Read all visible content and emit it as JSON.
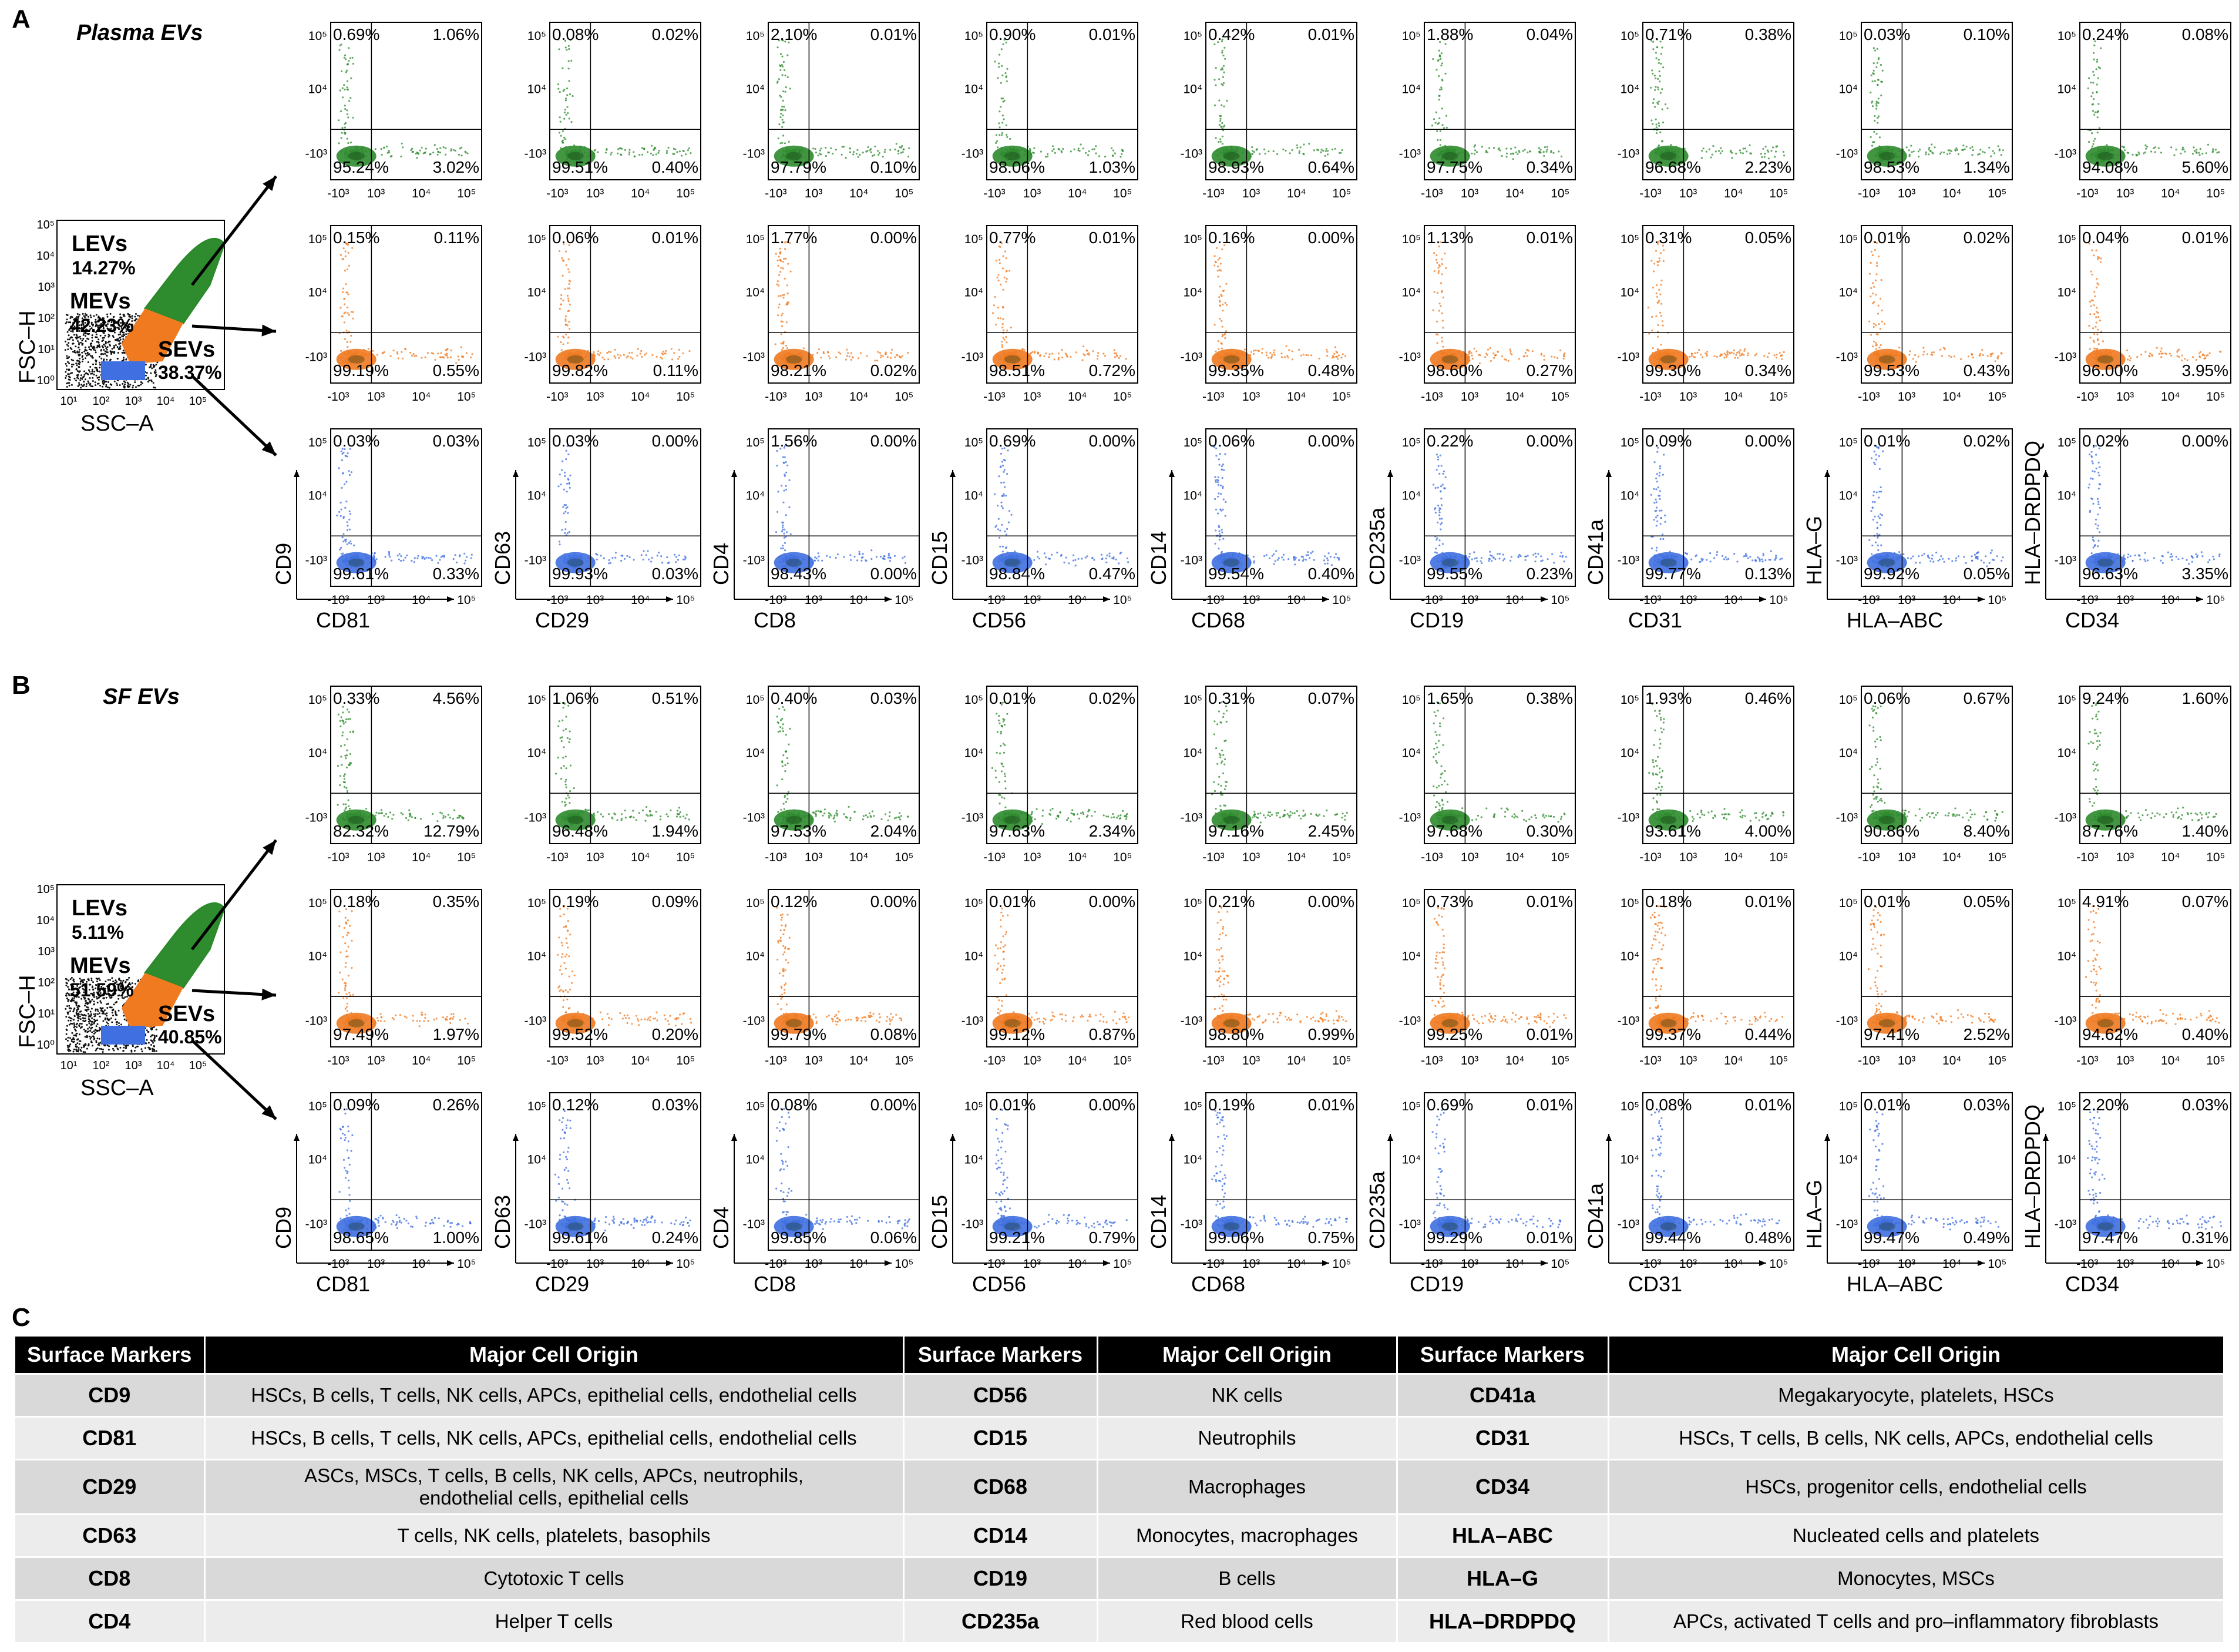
{
  "panels": {
    "A": {
      "letter": "A",
      "title": "Plasma EVs"
    },
    "B": {
      "letter": "B",
      "title": "SF EVs"
    },
    "C": {
      "letter": "C"
    }
  },
  "colors": {
    "LEVs": "#2e8b2e",
    "MEVs": "#f07a20",
    "SEVs": "#3f6fe0",
    "gate_outline": "#2a8a2a"
  },
  "gating": {
    "A": {
      "LEVs": {
        "label": "LEVs",
        "pct": "14.27%"
      },
      "MEVs": {
        "label": "MEVs",
        "pct": "42.23%"
      },
      "SEVs": {
        "label": "SEVs",
        "pct": "38.37%"
      }
    },
    "B": {
      "LEVs": {
        "label": "LEVs",
        "pct": "5.11%"
      },
      "MEVs": {
        "label": "MEVs",
        "pct": "51.59%"
      },
      "SEVs": {
        "label": "SEVs",
        "pct": "40.85%"
      }
    },
    "xlabel": "SSC–A",
    "ylabel": "FSC–H",
    "xticks": [
      "10¹",
      "10²",
      "10³",
      "10⁴",
      "10⁵"
    ],
    "yticks": [
      "10⁵",
      "10⁴",
      "10³",
      "10²",
      "10¹",
      "10⁰"
    ]
  },
  "pairs": [
    {
      "x": "CD81",
      "y": "CD9"
    },
    {
      "x": "CD29",
      "y": "CD63"
    },
    {
      "x": "CD8",
      "y": "CD4"
    },
    {
      "x": "CD56",
      "y": "CD15"
    },
    {
      "x": "CD68",
      "y": "CD14"
    },
    {
      "x": "CD19",
      "y": "CD235a"
    },
    {
      "x": "CD31",
      "y": "CD41a"
    },
    {
      "x": "HLA–ABC",
      "y": "HLA–G"
    },
    {
      "x": "CD34",
      "y": "HLA–DRDPDQ"
    }
  ],
  "chart_data": [
    {
      "type": "scatter",
      "panel": "A",
      "population": "LEVs",
      "quadrants": [
        [
          "0.69%",
          "1.06%",
          "95.24%",
          "3.02%"
        ],
        [
          "0.08%",
          "0.02%",
          "99.51%",
          "0.40%"
        ],
        [
          "2.10%",
          "0.01%",
          "97.79%",
          "0.10%"
        ],
        [
          "0.90%",
          "0.01%",
          "98.06%",
          "1.03%"
        ],
        [
          "0.42%",
          "0.01%",
          "98.93%",
          "0.64%"
        ],
        [
          "1.88%",
          "0.04%",
          "97.75%",
          "0.34%"
        ],
        [
          "0.71%",
          "0.38%",
          "96.68%",
          "2.23%"
        ],
        [
          "0.03%",
          "0.10%",
          "98.53%",
          "1.34%"
        ],
        [
          "0.24%",
          "0.08%",
          "94.08%",
          "5.60%"
        ]
      ]
    },
    {
      "type": "scatter",
      "panel": "A",
      "population": "MEVs",
      "quadrants": [
        [
          "0.15%",
          "0.11%",
          "99.19%",
          "0.55%"
        ],
        [
          "0.06%",
          "0.01%",
          "99.82%",
          "0.11%"
        ],
        [
          "1.77%",
          "0.00%",
          "98.21%",
          "0.02%"
        ],
        [
          "0.77%",
          "0.01%",
          "98.51%",
          "0.72%"
        ],
        [
          "0.16%",
          "0.00%",
          "99.35%",
          "0.48%"
        ],
        [
          "1.13%",
          "0.01%",
          "98.60%",
          "0.27%"
        ],
        [
          "0.31%",
          "0.05%",
          "99.30%",
          "0.34%"
        ],
        [
          "0.01%",
          "0.02%",
          "99.53%",
          "0.43%"
        ],
        [
          "0.04%",
          "0.01%",
          "96.00%",
          "3.95%"
        ]
      ]
    },
    {
      "type": "scatter",
      "panel": "A",
      "population": "SEVs",
      "quadrants": [
        [
          "0.03%",
          "0.03%",
          "99.61%",
          "0.33%"
        ],
        [
          "0.03%",
          "0.00%",
          "99.93%",
          "0.03%"
        ],
        [
          "1.56%",
          "0.00%",
          "98.43%",
          "0.00%"
        ],
        [
          "0.69%",
          "0.00%",
          "98.84%",
          "0.47%"
        ],
        [
          "0.06%",
          "0.00%",
          "99.54%",
          "0.40%"
        ],
        [
          "0.22%",
          "0.00%",
          "99.55%",
          "0.23%"
        ],
        [
          "0.09%",
          "0.00%",
          "99.77%",
          "0.13%"
        ],
        [
          "0.01%",
          "0.02%",
          "99.92%",
          "0.05%"
        ],
        [
          "0.02%",
          "0.00%",
          "96.63%",
          "3.35%"
        ]
      ]
    },
    {
      "type": "scatter",
      "panel": "B",
      "population": "LEVs",
      "quadrants": [
        [
          "0.33%",
          "4.56%",
          "82.32%",
          "12.79%"
        ],
        [
          "1.06%",
          "0.51%",
          "96.48%",
          "1.94%"
        ],
        [
          "0.40%",
          "0.03%",
          "97.53%",
          "2.04%"
        ],
        [
          "0.01%",
          "0.02%",
          "97.63%",
          "2.34%"
        ],
        [
          "0.31%",
          "0.07%",
          "97.16%",
          "2.45%"
        ],
        [
          "1.65%",
          "0.38%",
          "97.68%",
          "0.30%"
        ],
        [
          "1.93%",
          "0.46%",
          "93.61%",
          "4.00%"
        ],
        [
          "0.06%",
          "0.67%",
          "90.86%",
          "8.40%"
        ],
        [
          "9.24%",
          "1.60%",
          "87.76%",
          "1.40%"
        ]
      ]
    },
    {
      "type": "scatter",
      "panel": "B",
      "population": "MEVs",
      "quadrants": [
        [
          "0.18%",
          "0.35%",
          "97.49%",
          "1.97%"
        ],
        [
          "0.19%",
          "0.09%",
          "99.52%",
          "0.20%"
        ],
        [
          "0.12%",
          "0.00%",
          "99.79%",
          "0.08%"
        ],
        [
          "0.01%",
          "0.00%",
          "99.12%",
          "0.87%"
        ],
        [
          "0.21%",
          "0.00%",
          "98.80%",
          "0.99%"
        ],
        [
          "0.73%",
          "0.01%",
          "99.25%",
          "0.01%"
        ],
        [
          "0.18%",
          "0.01%",
          "99.37%",
          "0.44%"
        ],
        [
          "0.01%",
          "0.05%",
          "97.41%",
          "2.52%"
        ],
        [
          "4.91%",
          "0.07%",
          "94.62%",
          "0.40%"
        ]
      ]
    },
    {
      "type": "scatter",
      "panel": "B",
      "population": "SEVs",
      "quadrants": [
        [
          "0.09%",
          "0.26%",
          "98.65%",
          "1.00%"
        ],
        [
          "0.12%",
          "0.03%",
          "99.61%",
          "0.24%"
        ],
        [
          "0.08%",
          "0.00%",
          "99.85%",
          "0.06%"
        ],
        [
          "0.01%",
          "0.00%",
          "99.21%",
          "0.79%"
        ],
        [
          "0.19%",
          "0.01%",
          "99.06%",
          "0.75%"
        ],
        [
          "0.69%",
          "0.01%",
          "99.29%",
          "0.01%"
        ],
        [
          "0.08%",
          "0.01%",
          "99.44%",
          "0.48%"
        ],
        [
          "0.01%",
          "0.03%",
          "99.47%",
          "0.49%"
        ],
        [
          "2.20%",
          "0.03%",
          "97.47%",
          "0.31%"
        ]
      ]
    }
  ],
  "table": {
    "headers": [
      "Surface Markers",
      "Major Cell Origin",
      "Surface Markers",
      "Major Cell Origin",
      "Surface Markers",
      "Major Cell Origin"
    ],
    "rows": [
      [
        "CD9",
        "HSCs, B cells, T cells, NK cells, APCs, epithelial cells, endothelial cells",
        "CD56",
        "NK cells",
        "CD41a",
        "Megakaryocyte, platelets, HSCs"
      ],
      [
        "CD81",
        "HSCs, B cells, T cells, NK cells, APCs, epithelial cells, endothelial cells",
        "CD15",
        "Neutrophils",
        "CD31",
        "HSCs, T cells, B cells, NK cells, APCs, endothelial cells"
      ],
      [
        "CD29",
        "ASCs, MSCs, T cells, B cells, NK cells, APCs, neutrophils, endothelial cells, epithelial cells",
        "CD68",
        "Macrophages",
        "CD34",
        "HSCs, progenitor cells, endothelial cells"
      ],
      [
        "CD63",
        "T cells, NK cells, platelets, basophils",
        "CD14",
        "Monocytes, macrophages",
        "HLA–ABC",
        "Nucleated cells and platelets"
      ],
      [
        "CD8",
        "Cytotoxic T cells",
        "CD19",
        "B cells",
        "HLA–G",
        "Monocytes, MSCs"
      ],
      [
        "CD4",
        "Helper T cells",
        "CD235a",
        "Red blood cells",
        "HLA–DRDPDQ",
        "APCs, activated T cells and pro–inflammatory fibroblasts"
      ]
    ]
  }
}
